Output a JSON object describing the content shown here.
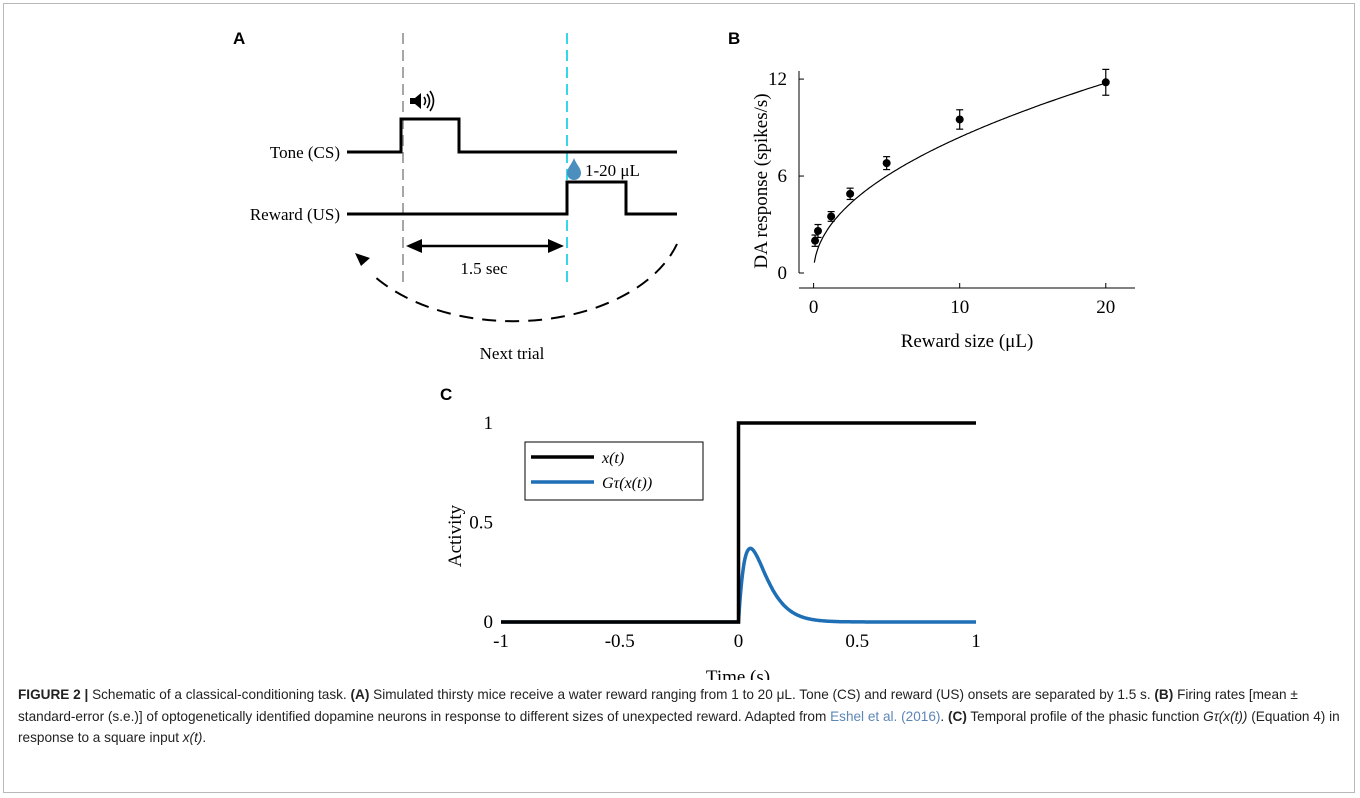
{
  "panelA": {
    "letter": "A",
    "tone_label": "Tone (CS)",
    "reward_label": "Reward (US)",
    "reward_range": "1-20 μL",
    "interval_label": "1.5 sec",
    "next_trial_label": "Next trial",
    "icons": [
      "speaker-icon",
      "water-drop-icon"
    ],
    "colors": {
      "onset_dash": "#a6a6a6",
      "reward_dash": "#35d7e8",
      "drop": "#4a8fbd"
    }
  },
  "panelB": {
    "letter": "B",
    "chart_data": {
      "type": "scatter",
      "xlabel": "Reward size (μL)",
      "ylabel": "DA response (spikes/s)",
      "xlim": [
        -1,
        22
      ],
      "ylim": [
        0,
        12.5
      ],
      "xticks": [
        "0",
        "10",
        "20"
      ],
      "yticks": [
        "0",
        "6",
        "12"
      ],
      "points": [
        {
          "x": 0.1,
          "y": 2.0,
          "err": 0.35
        },
        {
          "x": 0.3,
          "y": 2.6,
          "err": 0.4
        },
        {
          "x": 1.2,
          "y": 3.5,
          "err": 0.3
        },
        {
          "x": 2.5,
          "y": 4.9,
          "err": 0.35
        },
        {
          "x": 5.0,
          "y": 6.8,
          "err": 0.4
        },
        {
          "x": 10.0,
          "y": 9.5,
          "err": 0.6
        },
        {
          "x": 20.0,
          "y": 11.8,
          "err": 0.8
        }
      ],
      "fit": {
        "scale": 2.75,
        "power": 0.485
      },
      "grid": false
    }
  },
  "panelC": {
    "letter": "C",
    "chart_data": {
      "type": "line",
      "xlabel": "Time (s)",
      "ylabel": "Activity",
      "xlim": [
        -1,
        1
      ],
      "ylim": [
        0,
        1
      ],
      "xticks": [
        "-1",
        "-0.5",
        "0",
        "0.5",
        "1"
      ],
      "yticks": [
        "0",
        "0.5",
        "1"
      ],
      "legend_position": "top-left",
      "series": [
        {
          "name": "x(t)",
          "color": "#000000",
          "kind": "step",
          "step_at": 0,
          "low": 0,
          "high": 1
        },
        {
          "name": "Gτ(x(t))",
          "color": "#1f6fb6",
          "kind": "alpha",
          "peak_time": 0.05,
          "peak_value": 0.37
        }
      ],
      "grid": false
    }
  },
  "caption": {
    "figure_label": "FIGURE 2 |",
    "intro": "Schematic of a classical-conditioning task.",
    "a_label": "(A)",
    "a_text": "Simulated thirsty mice receive a water reward ranging from 1 to 20 μL. Tone (CS) and reward (US) onsets are separated by 1.5 s.",
    "b_label": "(B)",
    "b_text": "Firing rates [mean ± standard-error (s.e.)] of optogenetically identified dopamine neurons in response to different sizes of unexpected reward. Adapted from",
    "b_ref": "Eshel et al. (2016)",
    "c_label": "(C)",
    "c_text_1": "Temporal profile of the phasic function",
    "c_func": "Gτ(x(t))",
    "c_text_2": "(Equation 4) in response to a square input",
    "c_input": "x(t)",
    "c_end": "."
  }
}
